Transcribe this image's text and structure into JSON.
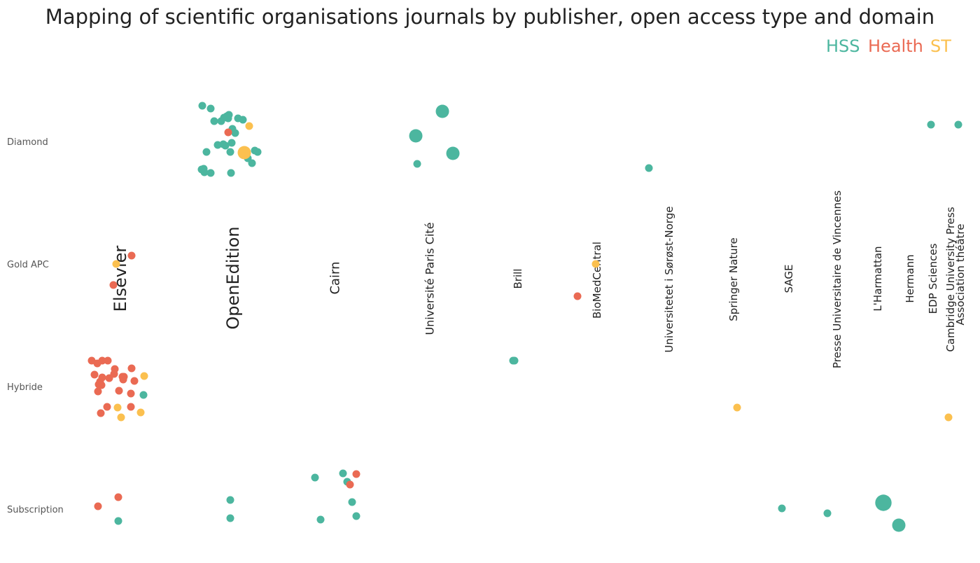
{
  "chart_data": {
    "type": "scatter",
    "title": "Mapping of scientific organisations journals by publisher, open access type and domain",
    "legend": {
      "placement": "top-right",
      "entries": [
        {
          "name": "HSS",
          "color": "#4cb69f"
        },
        {
          "name": "Health",
          "color": "#ea6a53"
        },
        {
          "name": "ST",
          "color": "#fbc04f"
        }
      ]
    },
    "access_types": [
      "Diamond",
      "Gold APC",
      "Hybride",
      "Subscription"
    ],
    "publishers": [
      "Elsevier",
      "OpenEdition",
      "Cairn",
      "Université Paris Cité",
      "Brill",
      "BioMedCentral",
      "Universitetet i Sørøst-Norge",
      "Springer Nature",
      "SAGE",
      "Presse Universitaire de Vincennes",
      "L'Harmattan",
      "Hermann",
      "EDP Sciences",
      "Cambridge University Press",
      "Association théâtre"
    ],
    "points": [
      {
        "publisher": "OpenEdition",
        "access": "Diamond",
        "domain": "HSS",
        "count": 1
      },
      {
        "publisher": "OpenEdition",
        "access": "Diamond",
        "domain": "HSS",
        "count": 1
      },
      {
        "publisher": "OpenEdition",
        "access": "Diamond",
        "domain": "HSS",
        "count": 1
      },
      {
        "publisher": "OpenEdition",
        "access": "Diamond",
        "domain": "HSS",
        "count": 1
      },
      {
        "publisher": "OpenEdition",
        "access": "Diamond",
        "domain": "HSS",
        "count": 1
      },
      {
        "publisher": "OpenEdition",
        "access": "Diamond",
        "domain": "HSS",
        "count": 1
      },
      {
        "publisher": "OpenEdition",
        "access": "Diamond",
        "domain": "HSS",
        "count": 1
      },
      {
        "publisher": "OpenEdition",
        "access": "Diamond",
        "domain": "HSS",
        "count": 1
      },
      {
        "publisher": "OpenEdition",
        "access": "Diamond",
        "domain": "HSS",
        "count": 1
      },
      {
        "publisher": "OpenEdition",
        "access": "Diamond",
        "domain": "HSS",
        "count": 1
      },
      {
        "publisher": "OpenEdition",
        "access": "Diamond",
        "domain": "HSS",
        "count": 1
      },
      {
        "publisher": "OpenEdition",
        "access": "Diamond",
        "domain": "HSS",
        "count": 1
      },
      {
        "publisher": "OpenEdition",
        "access": "Diamond",
        "domain": "HSS",
        "count": 1
      },
      {
        "publisher": "OpenEdition",
        "access": "Diamond",
        "domain": "HSS",
        "count": 1
      },
      {
        "publisher": "OpenEdition",
        "access": "Diamond",
        "domain": "HSS",
        "count": 1
      },
      {
        "publisher": "OpenEdition",
        "access": "Diamond",
        "domain": "HSS",
        "count": 1
      },
      {
        "publisher": "OpenEdition",
        "access": "Diamond",
        "domain": "HSS",
        "count": 1
      },
      {
        "publisher": "OpenEdition",
        "access": "Diamond",
        "domain": "HSS",
        "count": 1
      },
      {
        "publisher": "OpenEdition",
        "access": "Diamond",
        "domain": "HSS",
        "count": 1
      },
      {
        "publisher": "OpenEdition",
        "access": "Diamond",
        "domain": "HSS",
        "count": 1
      },
      {
        "publisher": "OpenEdition",
        "access": "Diamond",
        "domain": "HSS",
        "count": 1
      },
      {
        "publisher": "OpenEdition",
        "access": "Diamond",
        "domain": "HSS",
        "count": 1
      },
      {
        "publisher": "OpenEdition",
        "access": "Diamond",
        "domain": "HSS",
        "count": 1
      },
      {
        "publisher": "OpenEdition",
        "access": "Diamond",
        "domain": "HSS",
        "count": 1
      },
      {
        "publisher": "OpenEdition",
        "access": "Diamond",
        "domain": "HSS",
        "count": 1
      },
      {
        "publisher": "OpenEdition",
        "access": "Diamond",
        "domain": "HSS",
        "count": 1
      },
      {
        "publisher": "OpenEdition",
        "access": "Diamond",
        "domain": "HSS",
        "count": 1
      },
      {
        "publisher": "OpenEdition",
        "access": "Diamond",
        "domain": "Health",
        "count": 1
      },
      {
        "publisher": "OpenEdition",
        "access": "Diamond",
        "domain": "ST",
        "count": 1
      },
      {
        "publisher": "OpenEdition",
        "access": "Diamond",
        "domain": "ST",
        "count": 2
      },
      {
        "publisher": "Université Paris Cité",
        "access": "Diamond",
        "domain": "HSS",
        "count": 1
      },
      {
        "publisher": "Université Paris Cité",
        "access": "Diamond",
        "domain": "HSS",
        "count": 2
      },
      {
        "publisher": "Université Paris Cité",
        "access": "Diamond",
        "domain": "HSS",
        "count": 2
      },
      {
        "publisher": "Université Paris Cité",
        "access": "Diamond",
        "domain": "HSS",
        "count": 2
      },
      {
        "publisher": "Universitetet i Sørøst-Norge",
        "access": "Diamond",
        "domain": "HSS",
        "count": 1
      },
      {
        "publisher": "EDP Sciences",
        "access": "Diamond",
        "domain": "HSS",
        "count": 1
      },
      {
        "publisher": "Association théâtre",
        "access": "Diamond",
        "domain": "HSS",
        "count": 1
      },
      {
        "publisher": "Elsevier",
        "access": "Gold APC",
        "domain": "ST",
        "count": 1
      },
      {
        "publisher": "Elsevier",
        "access": "Gold APC",
        "domain": "Health",
        "count": 1
      },
      {
        "publisher": "Elsevier",
        "access": "Gold APC",
        "domain": "Health",
        "count": 1
      },
      {
        "publisher": "BioMedCentral",
        "access": "Gold APC",
        "domain": "Health",
        "count": 1
      },
      {
        "publisher": "BioMedCentral",
        "access": "Gold APC",
        "domain": "ST",
        "count": 1
      },
      {
        "publisher": "Elsevier",
        "access": "Hybride",
        "domain": "Health",
        "count": 1
      },
      {
        "publisher": "Elsevier",
        "access": "Hybride",
        "domain": "Health",
        "count": 1
      },
      {
        "publisher": "Elsevier",
        "access": "Hybride",
        "domain": "Health",
        "count": 1
      },
      {
        "publisher": "Elsevier",
        "access": "Hybride",
        "domain": "Health",
        "count": 1
      },
      {
        "publisher": "Elsevier",
        "access": "Hybride",
        "domain": "Health",
        "count": 1
      },
      {
        "publisher": "Elsevier",
        "access": "Hybride",
        "domain": "Health",
        "count": 1
      },
      {
        "publisher": "Elsevier",
        "access": "Hybride",
        "domain": "Health",
        "count": 1
      },
      {
        "publisher": "Elsevier",
        "access": "Hybride",
        "domain": "Health",
        "count": 1
      },
      {
        "publisher": "Elsevier",
        "access": "Hybride",
        "domain": "Health",
        "count": 1
      },
      {
        "publisher": "Elsevier",
        "access": "Hybride",
        "domain": "Health",
        "count": 1
      },
      {
        "publisher": "Elsevier",
        "access": "Hybride",
        "domain": "Health",
        "count": 1
      },
      {
        "publisher": "Elsevier",
        "access": "Hybride",
        "domain": "Health",
        "count": 1
      },
      {
        "publisher": "Elsevier",
        "access": "Hybride",
        "domain": "Health",
        "count": 1
      },
      {
        "publisher": "Elsevier",
        "access": "Hybride",
        "domain": "Health",
        "count": 1
      },
      {
        "publisher": "Elsevier",
        "access": "Hybride",
        "domain": "Health",
        "count": 1
      },
      {
        "publisher": "Elsevier",
        "access": "Hybride",
        "domain": "Health",
        "count": 1
      },
      {
        "publisher": "Elsevier",
        "access": "Hybride",
        "domain": "Health",
        "count": 1
      },
      {
        "publisher": "Elsevier",
        "access": "Hybride",
        "domain": "Health",
        "count": 1
      },
      {
        "publisher": "Elsevier",
        "access": "Hybride",
        "domain": "Health",
        "count": 1
      },
      {
        "publisher": "Elsevier",
        "access": "Hybride",
        "domain": "Health",
        "count": 1
      },
      {
        "publisher": "Elsevier",
        "access": "Hybride",
        "domain": "Health",
        "count": 1
      },
      {
        "publisher": "Elsevier",
        "access": "Hybride",
        "domain": "Health",
        "count": 1
      },
      {
        "publisher": "Elsevier",
        "access": "Hybride",
        "domain": "Health",
        "count": 1
      },
      {
        "publisher": "Elsevier",
        "access": "Hybride",
        "domain": "ST",
        "count": 1
      },
      {
        "publisher": "Elsevier",
        "access": "Hybride",
        "domain": "ST",
        "count": 1
      },
      {
        "publisher": "Elsevier",
        "access": "Hybride",
        "domain": "ST",
        "count": 1
      },
      {
        "publisher": "Elsevier",
        "access": "Hybride",
        "domain": "ST",
        "count": 1
      },
      {
        "publisher": "Elsevier",
        "access": "Hybride",
        "domain": "HSS",
        "count": 1
      },
      {
        "publisher": "Brill",
        "access": "Hybride",
        "domain": "HSS",
        "count": 1
      },
      {
        "publisher": "Brill",
        "access": "Hybride",
        "domain": "HSS",
        "count": 1
      },
      {
        "publisher": "Springer Nature",
        "access": "Hybride",
        "domain": "ST",
        "count": 1
      },
      {
        "publisher": "Cambridge University Press",
        "access": "Hybride",
        "domain": "ST",
        "count": 1
      },
      {
        "publisher": "Elsevier",
        "access": "Subscription",
        "domain": "Health",
        "count": 1
      },
      {
        "publisher": "Elsevier",
        "access": "Subscription",
        "domain": "Health",
        "count": 1
      },
      {
        "publisher": "Elsevier",
        "access": "Subscription",
        "domain": "HSS",
        "count": 1
      },
      {
        "publisher": "OpenEdition",
        "access": "Subscription",
        "domain": "HSS",
        "count": 1
      },
      {
        "publisher": "OpenEdition",
        "access": "Subscription",
        "domain": "HSS",
        "count": 1
      },
      {
        "publisher": "Cairn",
        "access": "Subscription",
        "domain": "HSS",
        "count": 1
      },
      {
        "publisher": "Cairn",
        "access": "Subscription",
        "domain": "HSS",
        "count": 1
      },
      {
        "publisher": "Cairn",
        "access": "Subscription",
        "domain": "HSS",
        "count": 1
      },
      {
        "publisher": "Cairn",
        "access": "Subscription",
        "domain": "HSS",
        "count": 1
      },
      {
        "publisher": "Cairn",
        "access": "Subscription",
        "domain": "HSS",
        "count": 1
      },
      {
        "publisher": "Cairn",
        "access": "Subscription",
        "domain": "HSS",
        "count": 1
      },
      {
        "publisher": "Cairn",
        "access": "Subscription",
        "domain": "Health",
        "count": 1
      },
      {
        "publisher": "Cairn",
        "access": "Subscription",
        "domain": "Health",
        "count": 1
      },
      {
        "publisher": "SAGE",
        "access": "Subscription",
        "domain": "HSS",
        "count": 1
      },
      {
        "publisher": "Presse Universitaire de Vincennes",
        "access": "Subscription",
        "domain": "HSS",
        "count": 1
      },
      {
        "publisher": "L'Harmattan",
        "access": "Subscription",
        "domain": "HSS",
        "count": 2
      },
      {
        "publisher": "Hermann",
        "access": "Subscription",
        "domain": "HSS",
        "count": 4
      }
    ]
  }
}
